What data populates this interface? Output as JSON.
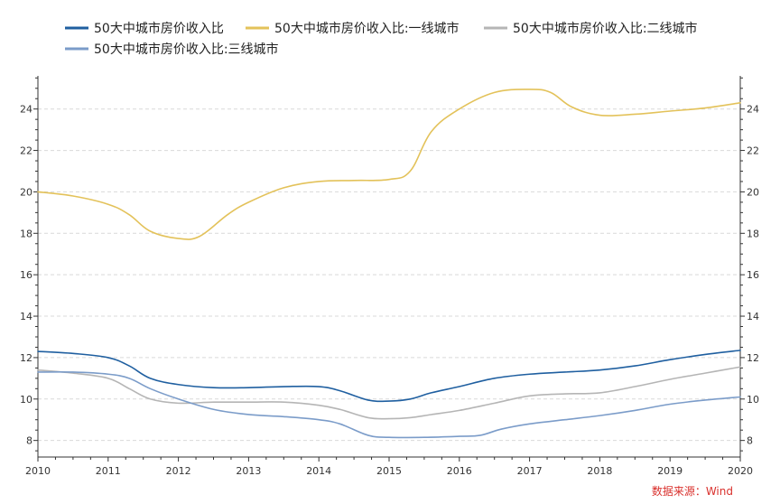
{
  "chart_data": {
    "type": "line",
    "title": "",
    "xlabel": "",
    "ylabel": "",
    "xlim": [
      2010,
      2020
    ],
    "ylim": [
      7.2,
      25.6
    ],
    "x_ticks": [
      2010,
      2011,
      2012,
      2013,
      2014,
      2015,
      2016,
      2017,
      2018,
      2019,
      2020
    ],
    "y_ticks": [
      8,
      10,
      12,
      14,
      16,
      18,
      20,
      22,
      24
    ],
    "grid": "horizontal dashed",
    "legend_position": "top",
    "source": "数据来源：Wind",
    "colors": {
      "series_1": "#1f5fa0",
      "series_2": "#e3c25a",
      "series_3": "#b5b5b5",
      "series_4": "#7b9cc9",
      "source_text": "#d9302c",
      "axis": "#333333",
      "grid": "#d9d9d9"
    },
    "series": [
      {
        "name": "50大中城市房价收入比",
        "color": "#1f5fa0",
        "points": [
          [
            2010,
            12.3
          ],
          [
            2010.5,
            12.2
          ],
          [
            2011,
            12.0
          ],
          [
            2011.3,
            11.6
          ],
          [
            2011.6,
            11.0
          ],
          [
            2012,
            10.7
          ],
          [
            2012.5,
            10.55
          ],
          [
            2013,
            10.55
          ],
          [
            2013.5,
            10.6
          ],
          [
            2014,
            10.6
          ],
          [
            2014.3,
            10.4
          ],
          [
            2014.7,
            9.95
          ],
          [
            2015,
            9.9
          ],
          [
            2015.3,
            10.0
          ],
          [
            2015.6,
            10.3
          ],
          [
            2016,
            10.6
          ],
          [
            2016.5,
            11.0
          ],
          [
            2017,
            11.2
          ],
          [
            2017.5,
            11.3
          ],
          [
            2018,
            11.4
          ],
          [
            2018.5,
            11.6
          ],
          [
            2019,
            11.9
          ],
          [
            2019.5,
            12.15
          ],
          [
            2020,
            12.35
          ]
        ]
      },
      {
        "name": "50大中城市房价收入比:一线城市",
        "color": "#e3c25a",
        "points": [
          [
            2010,
            20.0
          ],
          [
            2010.5,
            19.8
          ],
          [
            2011,
            19.4
          ],
          [
            2011.3,
            18.9
          ],
          [
            2011.6,
            18.1
          ],
          [
            2012,
            17.75
          ],
          [
            2012.3,
            17.85
          ],
          [
            2012.7,
            18.9
          ],
          [
            2013,
            19.5
          ],
          [
            2013.5,
            20.2
          ],
          [
            2014,
            20.5
          ],
          [
            2014.5,
            20.55
          ],
          [
            2015,
            20.6
          ],
          [
            2015.3,
            21.0
          ],
          [
            2015.6,
            22.9
          ],
          [
            2016,
            24.0
          ],
          [
            2016.5,
            24.8
          ],
          [
            2017,
            24.95
          ],
          [
            2017.3,
            24.8
          ],
          [
            2017.6,
            24.1
          ],
          [
            2018,
            23.7
          ],
          [
            2018.5,
            23.75
          ],
          [
            2019,
            23.9
          ],
          [
            2019.5,
            24.05
          ],
          [
            2020,
            24.3
          ]
        ]
      },
      {
        "name": "50大中城市房价收入比:二线城市",
        "color": "#b5b5b5",
        "points": [
          [
            2010,
            11.4
          ],
          [
            2010.5,
            11.25
          ],
          [
            2011,
            11.0
          ],
          [
            2011.3,
            10.5
          ],
          [
            2011.6,
            10.0
          ],
          [
            2012,
            9.8
          ],
          [
            2012.5,
            9.85
          ],
          [
            2013,
            9.85
          ],
          [
            2013.5,
            9.85
          ],
          [
            2014,
            9.7
          ],
          [
            2014.3,
            9.5
          ],
          [
            2014.7,
            9.1
          ],
          [
            2015,
            9.05
          ],
          [
            2015.3,
            9.1
          ],
          [
            2015.6,
            9.25
          ],
          [
            2016,
            9.45
          ],
          [
            2016.5,
            9.8
          ],
          [
            2017,
            10.15
          ],
          [
            2017.5,
            10.25
          ],
          [
            2018,
            10.3
          ],
          [
            2018.5,
            10.6
          ],
          [
            2019,
            10.95
          ],
          [
            2019.5,
            11.25
          ],
          [
            2020,
            11.55
          ]
        ]
      },
      {
        "name": "50大中城市房价收入比:三线城市",
        "color": "#7b9cc9",
        "points": [
          [
            2010,
            11.3
          ],
          [
            2010.5,
            11.3
          ],
          [
            2011,
            11.2
          ],
          [
            2011.3,
            11.0
          ],
          [
            2011.6,
            10.5
          ],
          [
            2012,
            10.0
          ],
          [
            2012.5,
            9.5
          ],
          [
            2013,
            9.25
          ],
          [
            2013.5,
            9.15
          ],
          [
            2014,
            9.0
          ],
          [
            2014.3,
            8.8
          ],
          [
            2014.7,
            8.25
          ],
          [
            2015,
            8.15
          ],
          [
            2015.5,
            8.15
          ],
          [
            2016,
            8.2
          ],
          [
            2016.3,
            8.25
          ],
          [
            2016.6,
            8.55
          ],
          [
            2017,
            8.8
          ],
          [
            2017.5,
            9.0
          ],
          [
            2018,
            9.2
          ],
          [
            2018.5,
            9.45
          ],
          [
            2019,
            9.75
          ],
          [
            2019.5,
            9.95
          ],
          [
            2020,
            10.1
          ]
        ]
      }
    ]
  }
}
